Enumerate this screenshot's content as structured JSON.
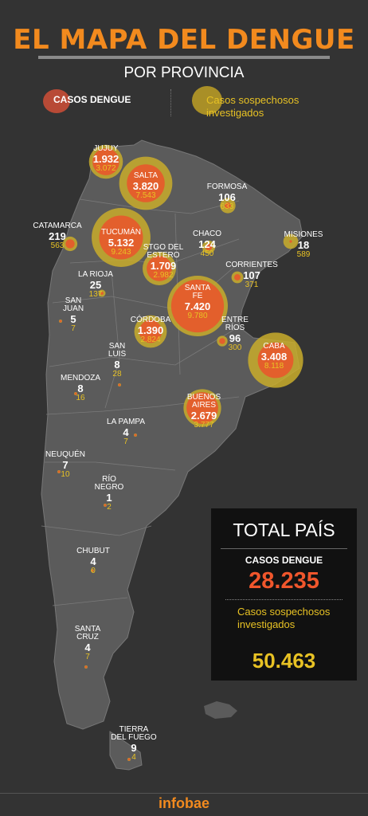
{
  "header": {
    "title": "EL MAPA DEL DENGUE",
    "subtitle": "POR PROVINCIA"
  },
  "legend": {
    "cases_label": "CASOS DENGUE",
    "suspected_label": "Casos sospechosos investigados"
  },
  "colors": {
    "background": "#333333",
    "land": "#5b5b5b",
    "cases": "#e8582b",
    "suspected": "#c9ad2b",
    "accent": "#f28a1e"
  },
  "provinces": [
    {
      "name": "JUJUY",
      "cases": "1.932",
      "suspected": "3.072"
    },
    {
      "name": "SALTA",
      "cases": "3.820",
      "suspected": "7.543"
    },
    {
      "name": "FORMOSA",
      "cases": "106",
      "suspected": "633"
    },
    {
      "name": "CATAMARCA",
      "cases": "219",
      "suspected": "563"
    },
    {
      "name": "TUCUMÁN",
      "cases": "5.132",
      "suspected": "9.243"
    },
    {
      "name": "CHACO",
      "cases": "124",
      "suspected": "450"
    },
    {
      "name": "MISIONES",
      "cases": "18",
      "suspected": "589"
    },
    {
      "name": "STGO DEL ESTERO",
      "cases": "1.709",
      "suspected": "2.982"
    },
    {
      "name": "LA RIOJA",
      "cases": "25",
      "suspected": "137"
    },
    {
      "name": "CORRIENTES",
      "cases": "107",
      "suspected": "371"
    },
    {
      "name": "SANTA FE",
      "cases": "7.420",
      "suspected": "9.780"
    },
    {
      "name": "SAN JUAN",
      "cases": "5",
      "suspected": "7"
    },
    {
      "name": "CÓRDOBA",
      "cases": "1.390",
      "suspected": "2.824"
    },
    {
      "name": "ENTRE RÍOS",
      "cases": "96",
      "suspected": "300"
    },
    {
      "name": "CABA",
      "cases": "3.408",
      "suspected": "8.118"
    },
    {
      "name": "SAN LUIS",
      "cases": "8",
      "suspected": "28"
    },
    {
      "name": "MENDOZA",
      "cases": "8",
      "suspected": "16"
    },
    {
      "name": "BUENOS AIRES",
      "cases": "2.679",
      "suspected": "3.777"
    },
    {
      "name": "LA PAMPA",
      "cases": "4",
      "suspected": "7"
    },
    {
      "name": "NEUQUÉN",
      "cases": "7",
      "suspected": "10"
    },
    {
      "name": "RÍO NEGRO",
      "cases": "1",
      "suspected": "2"
    },
    {
      "name": "CHUBUT",
      "cases": "4",
      "suspected": "0"
    },
    {
      "name": "SANTA CRUZ",
      "cases": "4",
      "suspected": "7"
    },
    {
      "name": "TIERRA DEL FUEGO",
      "cases": "9",
      "suspected": "4"
    }
  ],
  "total": {
    "title": "TOTAL PAÍS",
    "cases_label": "CASOS DENGUE",
    "cases": "28.235",
    "suspected_label": "Casos sospechosos investigados",
    "suspected": "50.463"
  },
  "footer": {
    "brand": "infobae"
  }
}
